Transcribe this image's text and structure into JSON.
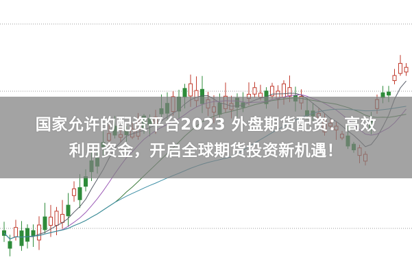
{
  "headline": {
    "line1": "国家允许的配资平台2023 外盘期货配资：高效",
    "line2": "利用资金，开启全球期货投资新机遇！"
  },
  "colors": {
    "up_candle": "#c0392b",
    "down_candle": "#2e8b3a",
    "banner": "#808080",
    "gridline": "#999999"
  }
}
